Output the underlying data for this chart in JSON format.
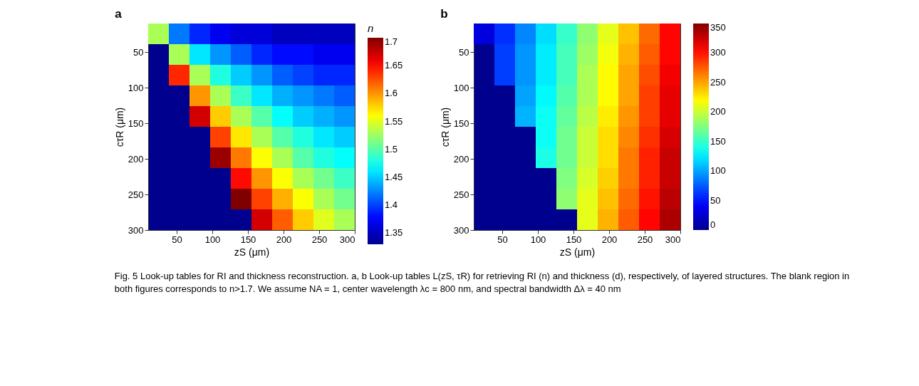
{
  "chart_data": [
    {
      "type": "heatmap",
      "title": "a",
      "xlabel": "zS (μm)",
      "ylabel": "cτR (μm)",
      "clabel": "n",
      "x": [
        24.5,
        53.5,
        82.5,
        111.5,
        140.5,
        169.5,
        198.5,
        227.5,
        256.5,
        285.5
      ],
      "y": [
        24.5,
        53.5,
        82.5,
        111.5,
        140.5,
        169.5,
        198.5,
        227.5,
        256.5,
        285.5
      ],
      "xlim": [
        10,
        300
      ],
      "ylim": [
        300,
        10
      ],
      "xticks": [
        50,
        100,
        150,
        200,
        250,
        300
      ],
      "yticks": [
        50,
        100,
        150,
        200,
        250,
        300
      ],
      "clim": [
        1.33,
        1.7
      ],
      "cticks": [
        1.35,
        1.4,
        1.45,
        1.5,
        1.55,
        1.6,
        1.65,
        1.7
      ],
      "cells": [
        [
          1.53,
          1.42,
          1.39,
          1.37,
          1.36,
          1.36,
          1.35,
          1.35,
          1.35,
          1.35
        ],
        [
          null,
          1.53,
          1.46,
          1.43,
          1.41,
          1.39,
          1.38,
          1.38,
          1.37,
          1.37
        ],
        [
          null,
          1.64,
          1.53,
          1.48,
          1.45,
          1.43,
          1.41,
          1.4,
          1.39,
          1.39
        ],
        [
          null,
          null,
          1.6,
          1.53,
          1.49,
          1.46,
          1.44,
          1.43,
          1.42,
          1.41
        ],
        [
          null,
          null,
          1.67,
          1.58,
          1.53,
          1.5,
          1.47,
          1.45,
          1.44,
          1.43
        ],
        [
          null,
          null,
          null,
          1.63,
          1.57,
          1.53,
          1.5,
          1.48,
          1.46,
          1.45
        ],
        [
          null,
          null,
          null,
          1.69,
          1.61,
          1.56,
          1.53,
          1.5,
          1.48,
          1.47
        ],
        [
          null,
          null,
          null,
          null,
          1.65,
          1.6,
          1.56,
          1.53,
          1.51,
          1.49
        ],
        [
          null,
          null,
          null,
          null,
          1.7,
          1.63,
          1.59,
          1.56,
          1.53,
          1.51
        ],
        [
          null,
          null,
          null,
          null,
          null,
          1.67,
          1.62,
          1.58,
          1.55,
          1.53
        ]
      ],
      "annotations": [
        "Fig. 5 Look-up tables for RI and thickness reconstruction. a, b Look-up tables L(zS, τR) for retrieving RI (n) and thickness (d), respectively, of layered structures. The blank region in both figures corresponds to n>1.7. We assume NA = 1, center wavelength λc = 800 nm, and spectral bandwidth Δλ = 40 nm"
      ]
    },
    {
      "type": "heatmap",
      "title": "b",
      "xlabel": "zS (μm)",
      "ylabel": "cτR (μm)",
      "x": [
        24.5,
        53.5,
        82.5,
        111.5,
        140.5,
        169.5,
        198.5,
        227.5,
        256.5,
        285.5
      ],
      "y": [
        24.5,
        53.5,
        82.5,
        111.5,
        140.5,
        169.5,
        198.5,
        227.5,
        256.5,
        285.5
      ],
      "xlim": [
        10,
        300
      ],
      "ylim": [
        300,
        10
      ],
      "xticks": [
        50,
        100,
        150,
        200,
        250,
        300
      ],
      "yticks": [
        50,
        100,
        150,
        200,
        250,
        300
      ],
      "clim": [
        0,
        350
      ],
      "cticks": [
        0,
        50,
        100,
        150,
        200,
        250,
        300,
        350
      ],
      "cells": [
        [
          30,
          60,
          90,
          120,
          150,
          180,
          210,
          240,
          270,
          305
        ],
        [
          null,
          65,
          95,
          125,
          155,
          185,
          215,
          245,
          275,
          305
        ],
        [
          null,
          65,
          95,
          125,
          155,
          190,
          220,
          250,
          280,
          310
        ],
        [
          null,
          null,
          100,
          130,
          160,
          190,
          220,
          250,
          285,
          315
        ],
        [
          null,
          null,
          105,
          135,
          165,
          195,
          225,
          255,
          285,
          315
        ],
        [
          null,
          null,
          null,
          135,
          170,
          200,
          230,
          260,
          290,
          320
        ],
        [
          null,
          null,
          null,
          140,
          170,
          200,
          230,
          265,
          295,
          325
        ],
        [
          null,
          null,
          null,
          null,
          175,
          205,
          235,
          265,
          295,
          325
        ],
        [
          null,
          null,
          null,
          null,
          180,
          210,
          240,
          270,
          300,
          330
        ],
        [
          null,
          null,
          null,
          null,
          null,
          210,
          245,
          275,
          305,
          335
        ]
      ]
    }
  ]
}
